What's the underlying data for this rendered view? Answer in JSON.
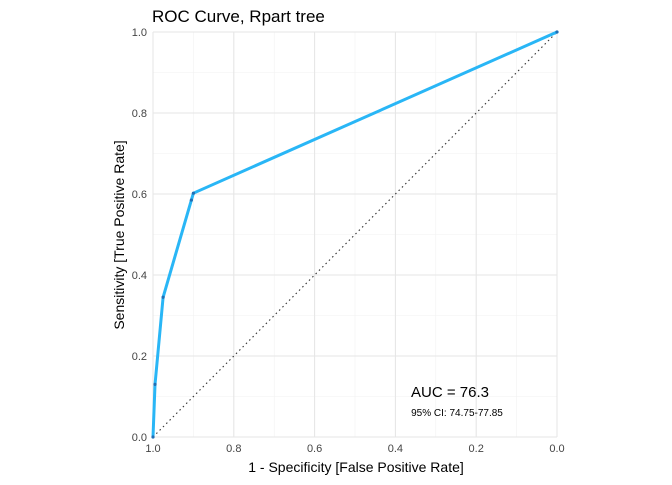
{
  "chart_data": {
    "type": "line",
    "title": "ROC Curve, Rpart tree",
    "xlabel": "1 - Specificity [False Positive Rate]",
    "ylabel": "Sensitivity [True Positive Rate]",
    "x_reversed": true,
    "xlim": [
      1.0,
      0.0
    ],
    "ylim": [
      0.0,
      1.0
    ],
    "x_ticks": [
      1.0,
      0.8,
      0.6,
      0.4,
      0.2,
      0.0
    ],
    "x_tick_labels": [
      "1.0",
      "0.8",
      "0.6",
      "0.4",
      "0.2",
      "0.0"
    ],
    "y_ticks": [
      0.0,
      0.2,
      0.4,
      0.6,
      0.8,
      1.0
    ],
    "y_tick_labels": [
      "0.0",
      "0.2",
      "0.4",
      "0.6",
      "0.8",
      "1.0"
    ],
    "grid": true,
    "series": [
      {
        "color": "#29b6f6",
        "x": [
          1.0,
          0.995,
          0.975,
          0.905,
          0.9,
          0.0
        ],
        "y": [
          0.0,
          0.13,
          0.345,
          0.585,
          0.602,
          1.0
        ]
      }
    ],
    "reference_line": {
      "style": "dotted",
      "color": "#333333",
      "x": [
        1.0,
        0.0
      ],
      "y": [
        0.0,
        1.0
      ]
    },
    "annotations": {
      "auc": "AUC = 76.3",
      "ci": "95% CI: 74.75-77.85"
    }
  }
}
